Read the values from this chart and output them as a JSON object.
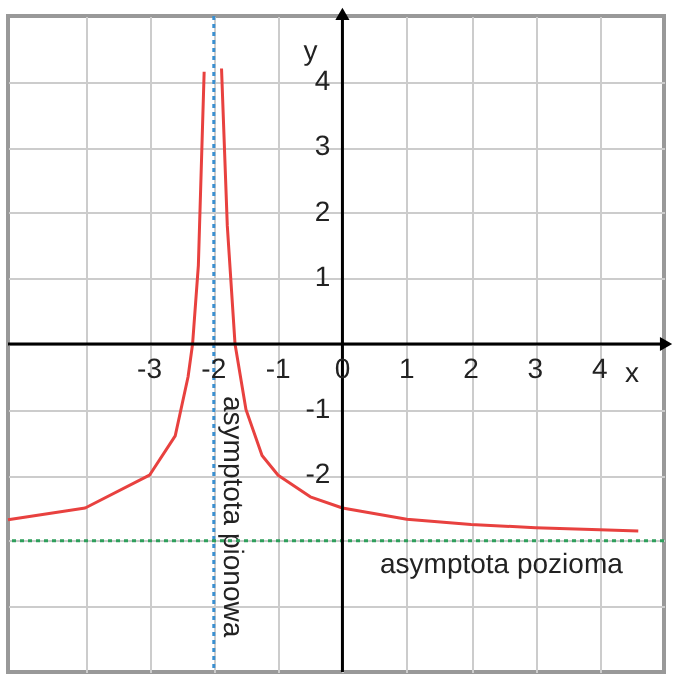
{
  "chart_data": {
    "type": "line",
    "xlabel": "x",
    "ylabel": "y",
    "xlim": [
      -5.2,
      5.0
    ],
    "ylim": [
      -5.0,
      5.0
    ],
    "xticks": [
      {
        "value": -4,
        "label": null
      },
      -3,
      -2,
      -1,
      0,
      1,
      2,
      3,
      4
    ],
    "yticks": [
      {
        "value": -4,
        "label": null
      },
      {
        "value": -3,
        "label": null
      },
      -2,
      -1,
      {
        "value": 0,
        "label": null
      },
      1,
      2,
      3,
      4
    ],
    "grid": true,
    "marker": "none",
    "line_style": "solid",
    "series": [
      {
        "color": "#e8413f",
        "x": [
          -5.2,
          -4,
          -3,
          -2.6,
          -2.4,
          -2.33,
          -2.24,
          -2.15
        ],
        "values": [
          -2.68,
          -2.5,
          -2,
          -1.4,
          -0.5,
          0,
          1.2,
          4.15
        ]
      },
      {
        "color": "#e8413f",
        "x": [
          -1.88,
          -1.79,
          -1.67,
          -1.5,
          -1.25,
          -1,
          -0.5,
          0,
          1,
          2,
          3,
          4,
          4.6
        ],
        "values": [
          4.2,
          1.8,
          0,
          -1,
          -1.7,
          -2,
          -2.33,
          -2.5,
          -2.67,
          -2.75,
          -2.8,
          -2.83,
          -2.85
        ]
      }
    ],
    "ref_lines": [
      {
        "axis": "x",
        "value": -2,
        "label": "asymptota pionowa",
        "color": "#3a8fd0",
        "line_style": "dotted"
      },
      {
        "axis": "y",
        "value": -3,
        "label": "asymptota pozioma",
        "color": "#2e9e5b",
        "line_style": "dotted"
      }
    ]
  }
}
